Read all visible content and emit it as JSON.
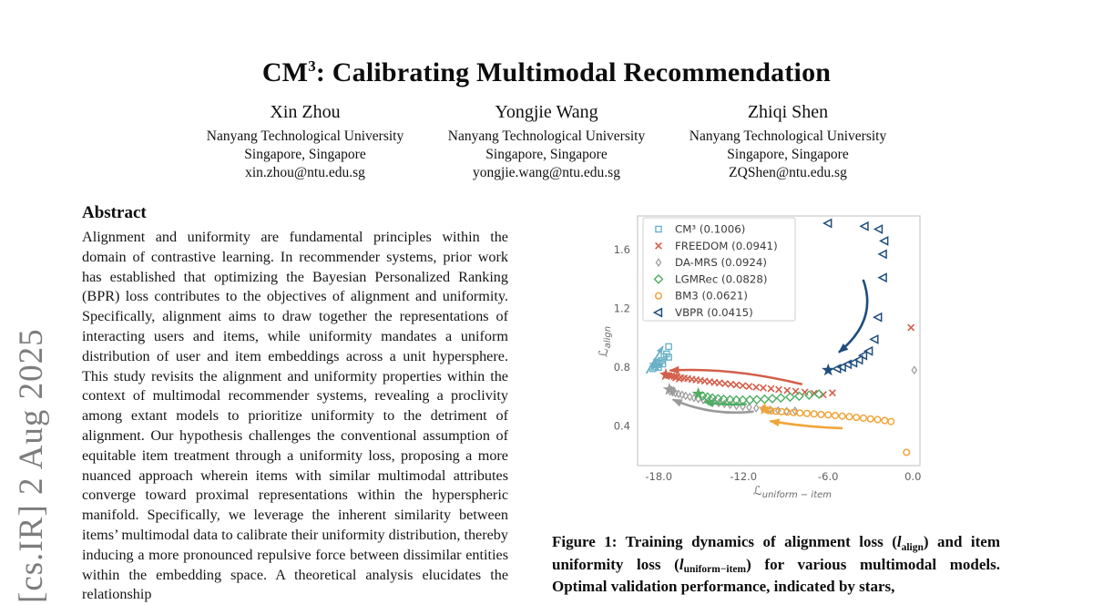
{
  "arxiv_banner": "[cs.IR] 2 Aug 2025",
  "title": {
    "prefix": "CM",
    "superscript": "3",
    "suffix": ": Calibrating Multimodal Recommendation"
  },
  "authors": [
    {
      "name": "Xin Zhou",
      "affiliation": "Nanyang Technological University",
      "location": "Singapore, Singapore",
      "email": "xin.zhou@ntu.edu.sg"
    },
    {
      "name": "Yongjie Wang",
      "affiliation": "Nanyang Technological University",
      "location": "Singapore, Singapore",
      "email": "yongjie.wang@ntu.edu.sg"
    },
    {
      "name": "Zhiqi Shen",
      "affiliation": "Nanyang Technological University",
      "location": "Singapore, Singapore",
      "email": "ZQShen@ntu.edu.sg"
    }
  ],
  "abstract": {
    "heading": "Abstract",
    "text": "Alignment and uniformity are fundamental principles within the domain of contrastive learning. In recommender systems, prior work has established that optimizing the Bayesian Personalized Ranking (BPR) loss contributes to the objectives of alignment and uniformity. Specifically, alignment aims to draw together the representations of interacting users and items, while uniformity mandates a uniform distribution of user and item embeddings across a unit hypersphere. This study revisits the alignment and uniformity properties within the context of multimodal recommender systems, revealing a proclivity among extant models to prioritize uniformity to the detriment of alignment. Our hypothesis challenges the conventional assumption of equitable item treatment through a uniformity loss, proposing a more nuanced approach wherein items with similar multimodal attributes converge toward proximal representations within the hyperspheric manifold. Specifically, we leverage the inherent similarity between items’ multimodal data to calibrate their uniformity distribution, thereby inducing a more pronounced repulsive force between dissimilar entities within the embedding space. A theoretical analysis elucidates the relationship"
  },
  "figure_caption": {
    "segments": [
      {
        "text": "Figure 1: Training dynamics of alignment loss ("
      },
      {
        "text": "l",
        "style": "it"
      },
      {
        "text": "align",
        "style": "sub"
      },
      {
        "text": ") and item uniformity loss ("
      },
      {
        "text": "l",
        "style": "it"
      },
      {
        "text": "uniform−item",
        "style": "sub"
      },
      {
        "text": ") for various multimodal models. Optimal validation performance, indicated by stars,"
      }
    ]
  },
  "chart_data": {
    "type": "scatter",
    "title": "",
    "xlabel_main": "ℒ",
    "xlabel_sub": "uniform − item",
    "ylabel_main": "ℒ",
    "ylabel_sub": "align",
    "xlim": [
      -19.5,
      0.5
    ],
    "ylim": [
      0.13,
      1.83
    ],
    "grid": false,
    "legend_position": "upper left",
    "xticks": [
      {
        "v": -18,
        "label": "-18.0"
      },
      {
        "v": -12,
        "label": "-12.0"
      },
      {
        "v": -6,
        "label": "-6.0"
      },
      {
        "v": 0,
        "label": "0.0"
      }
    ],
    "yticks": [
      {
        "v": 0.4,
        "label": "0.4"
      },
      {
        "v": 0.8,
        "label": "0.8"
      },
      {
        "v": 1.2,
        "label": "1.2"
      },
      {
        "v": 1.6,
        "label": "1.6"
      }
    ],
    "series": [
      {
        "name": "CM³",
        "legend": "CM³ (0.1006)",
        "marker": "square",
        "color": "#69b1c8",
        "points": [
          [
            -17.3,
            0.94
          ],
          [
            -17.45,
            0.89
          ],
          [
            -17.62,
            0.872
          ],
          [
            -17.3,
            0.868
          ],
          [
            -17.82,
            0.845
          ],
          [
            -17.96,
            0.828
          ],
          [
            -18.12,
            0.818
          ],
          [
            -17.72,
            0.822
          ],
          [
            -18.3,
            0.802
          ],
          [
            -18.02,
            0.798
          ],
          [
            -18.42,
            0.79
          ],
          [
            -18.15,
            0.835
          ]
        ],
        "star": [
          -18.25,
          0.815
        ],
        "arrow": {
          "from": [
            -18.85,
            0.762
          ],
          "ctrl": [
            -18.35,
            0.845
          ],
          "to": [
            -17.72,
            0.938
          ],
          "width": 1.8
        }
      },
      {
        "name": "FREEDOM",
        "legend": "FREEDOM (0.0941)",
        "marker": "x",
        "color": "#d35f4b",
        "points": [
          [
            -0.13,
            1.07
          ],
          [
            -5.7,
            0.625
          ],
          [
            -6.35,
            0.613
          ],
          [
            -7.0,
            0.622
          ],
          [
            -7.65,
            0.63
          ],
          [
            -8.3,
            0.636
          ],
          [
            -8.9,
            0.642
          ],
          [
            -9.5,
            0.648
          ],
          [
            -10.05,
            0.654
          ],
          [
            -10.6,
            0.659
          ],
          [
            -11.1,
            0.664
          ],
          [
            -11.6,
            0.669
          ],
          [
            -12.05,
            0.674
          ],
          [
            -12.5,
            0.679
          ],
          [
            -12.9,
            0.684
          ],
          [
            -13.3,
            0.688
          ],
          [
            -13.7,
            0.693
          ],
          [
            -14.05,
            0.697
          ],
          [
            -14.4,
            0.701
          ],
          [
            -14.75,
            0.706
          ],
          [
            -15.05,
            0.71
          ],
          [
            -15.35,
            0.714
          ],
          [
            -15.65,
            0.718
          ],
          [
            -15.95,
            0.722
          ],
          [
            -16.2,
            0.726
          ],
          [
            -16.45,
            0.73
          ],
          [
            -16.7,
            0.734
          ],
          [
            -16.9,
            0.737
          ],
          [
            -17.1,
            0.74
          ],
          [
            -17.28,
            0.743
          ],
          [
            -17.45,
            0.746
          ],
          [
            -16.55,
            0.72
          ],
          [
            -16.8,
            0.728
          ]
        ],
        "star": [
          -17.5,
          0.748
        ],
        "arrow": {
          "from": [
            -7.9,
            0.685
          ],
          "ctrl": [
            -12.8,
            0.8
          ],
          "to": [
            -17.15,
            0.778
          ],
          "width": 2.6
        }
      },
      {
        "name": "DA-MRS",
        "legend": "DA-MRS (0.0924)",
        "marker": "thin-diamond",
        "color": "#9a9a9a",
        "points": [
          [
            0.1,
            0.78
          ],
          [
            -8.35,
            0.503
          ],
          [
            -8.95,
            0.5
          ],
          [
            -9.55,
            0.505
          ],
          [
            -10.1,
            0.51
          ],
          [
            -10.6,
            0.515
          ],
          [
            -11.1,
            0.521
          ],
          [
            -11.6,
            0.527
          ],
          [
            -12.05,
            0.532
          ],
          [
            -12.5,
            0.538
          ],
          [
            -12.95,
            0.544
          ],
          [
            -13.35,
            0.55
          ],
          [
            -13.75,
            0.556
          ],
          [
            -14.15,
            0.563
          ],
          [
            -14.5,
            0.57
          ],
          [
            -14.85,
            0.577
          ],
          [
            -15.2,
            0.584
          ],
          [
            -15.5,
            0.591
          ],
          [
            -15.8,
            0.598
          ],
          [
            -16.1,
            0.605
          ],
          [
            -16.35,
            0.612
          ],
          [
            -16.6,
            0.618
          ],
          [
            -16.82,
            0.624
          ],
          [
            -17.02,
            0.63
          ],
          [
            -17.2,
            0.635
          ],
          [
            -16.95,
            0.64
          ],
          [
            -17.1,
            0.645
          ]
        ],
        "star": [
          -17.25,
          0.648
        ],
        "arrow": {
          "from": [
            -11.35,
            0.497
          ],
          "ctrl": [
            -14.3,
            0.468
          ],
          "to": [
            -16.95,
            0.578
          ],
          "width": 2.6
        }
      },
      {
        "name": "LGMRec",
        "legend": "LGMRec (0.0828)",
        "marker": "diamond",
        "color": "#4fae63",
        "points": [
          [
            -6.65,
            0.617
          ],
          [
            -7.35,
            0.61
          ],
          [
            -8.05,
            0.603
          ],
          [
            -8.7,
            0.597
          ],
          [
            -9.35,
            0.591
          ],
          [
            -9.95,
            0.586
          ],
          [
            -10.5,
            0.582
          ],
          [
            -11.05,
            0.579
          ],
          [
            -11.55,
            0.577
          ],
          [
            -12.05,
            0.576
          ],
          [
            -12.5,
            0.576
          ],
          [
            -12.95,
            0.578
          ],
          [
            -13.4,
            0.581
          ],
          [
            -13.8,
            0.585
          ],
          [
            -14.2,
            0.59
          ],
          [
            -14.55,
            0.597
          ],
          [
            -14.9,
            0.604
          ]
        ],
        "star": [
          -15.2,
          0.618
        ],
        "arrow": {
          "from": [
            -11.85,
            0.548
          ],
          "ctrl": [
            -13.3,
            0.54
          ],
          "to": [
            -14.7,
            0.562
          ],
          "width": 2.6
        }
      },
      {
        "name": "BM3",
        "legend": "BM3 (0.0621)",
        "marker": "circle",
        "color": "#f0a53a",
        "points": [
          [
            -0.45,
            0.22
          ],
          [
            -1.55,
            0.43
          ],
          [
            -2.0,
            0.437
          ],
          [
            -2.5,
            0.443
          ],
          [
            -3.0,
            0.448
          ],
          [
            -3.5,
            0.453
          ],
          [
            -4.0,
            0.458
          ],
          [
            -4.5,
            0.463
          ],
          [
            -5.0,
            0.467
          ],
          [
            -5.5,
            0.471
          ],
          [
            -6.0,
            0.475
          ],
          [
            -6.5,
            0.478
          ],
          [
            -7.0,
            0.482
          ],
          [
            -7.5,
            0.485
          ],
          [
            -8.0,
            0.488
          ],
          [
            -8.45,
            0.491
          ],
          [
            -8.9,
            0.494
          ],
          [
            -9.3,
            0.497
          ],
          [
            -9.7,
            0.5
          ],
          [
            -10.05,
            0.503
          ],
          [
            -10.3,
            0.507
          ]
        ],
        "star": [
          -10.5,
          0.515
        ],
        "arrow": {
          "from": [
            -5.05,
            0.385
          ],
          "ctrl": [
            -7.55,
            0.392
          ],
          "to": [
            -10.05,
            0.432
          ],
          "width": 2.6
        }
      },
      {
        "name": "VBPR",
        "legend": "VBPR (0.0415)",
        "marker": "triangle-left",
        "color": "#1f4e7e",
        "points": [
          [
            -6.0,
            1.78
          ],
          [
            -3.4,
            1.76
          ],
          [
            -2.4,
            1.74
          ],
          [
            -2.0,
            1.66
          ],
          [
            -2.1,
            1.57
          ],
          [
            -2.1,
            1.41
          ],
          [
            -2.45,
            1.14
          ],
          [
            -2.7,
            0.99
          ],
          [
            -3.1,
            0.91
          ],
          [
            -3.5,
            0.88
          ],
          [
            -3.8,
            0.85
          ],
          [
            -4.2,
            0.83
          ],
          [
            -4.6,
            0.82
          ],
          [
            -5.0,
            0.8
          ],
          [
            -5.35,
            0.79
          ]
        ],
        "star": [
          -6.0,
          0.78
        ],
        "arrow": {
          "from": [
            -3.5,
            1.39
          ],
          "ctrl": [
            -2.5,
            1.12
          ],
          "to": [
            -5.2,
            0.905
          ],
          "width": 2.6
        }
      }
    ]
  }
}
